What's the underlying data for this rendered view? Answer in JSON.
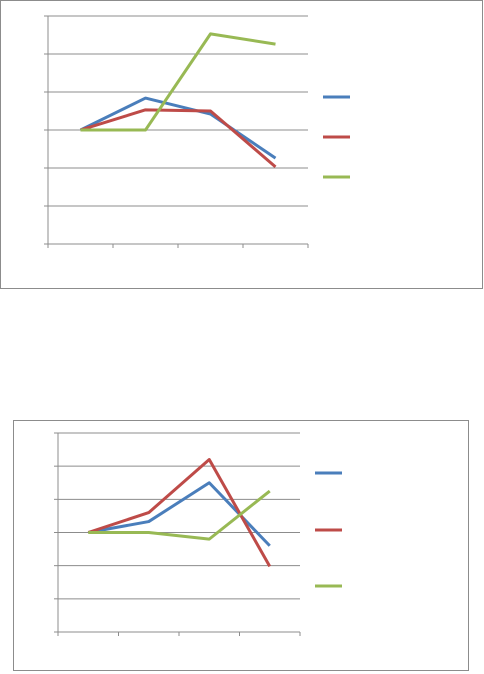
{
  "chart_data": [
    {
      "type": "line",
      "categories": [
        null,
        null,
        null,
        null
      ],
      "series": [
        {
          "color": "#4a7ebb",
          "values": [
            3,
            3.84,
            3.42,
            2.26
          ]
        },
        {
          "color": "#be4b48",
          "values": [
            3,
            3.53,
            3.5,
            2.03
          ]
        },
        {
          "color": "#98b954",
          "values": [
            3,
            3,
            5.53,
            5.26
          ]
        }
      ],
      "ylim": [
        0,
        6
      ],
      "yticks": [
        0,
        1,
        2,
        3,
        4,
        5,
        6
      ],
      "grid": true
    },
    {
      "type": "line",
      "categories": [
        null,
        null,
        null,
        null
      ],
      "series": [
        {
          "color": "#4a7ebb",
          "values": [
            3,
            3.33,
            4.5,
            2.6
          ]
        },
        {
          "color": "#be4b48",
          "values": [
            3,
            3.6,
            5.2,
            1.98
          ]
        },
        {
          "color": "#98b954",
          "values": [
            3,
            3,
            2.8,
            4.25
          ]
        }
      ],
      "ylim": [
        0,
        6
      ],
      "yticks": [
        0,
        1,
        2,
        3,
        4,
        5,
        6
      ],
      "grid": true
    }
  ]
}
